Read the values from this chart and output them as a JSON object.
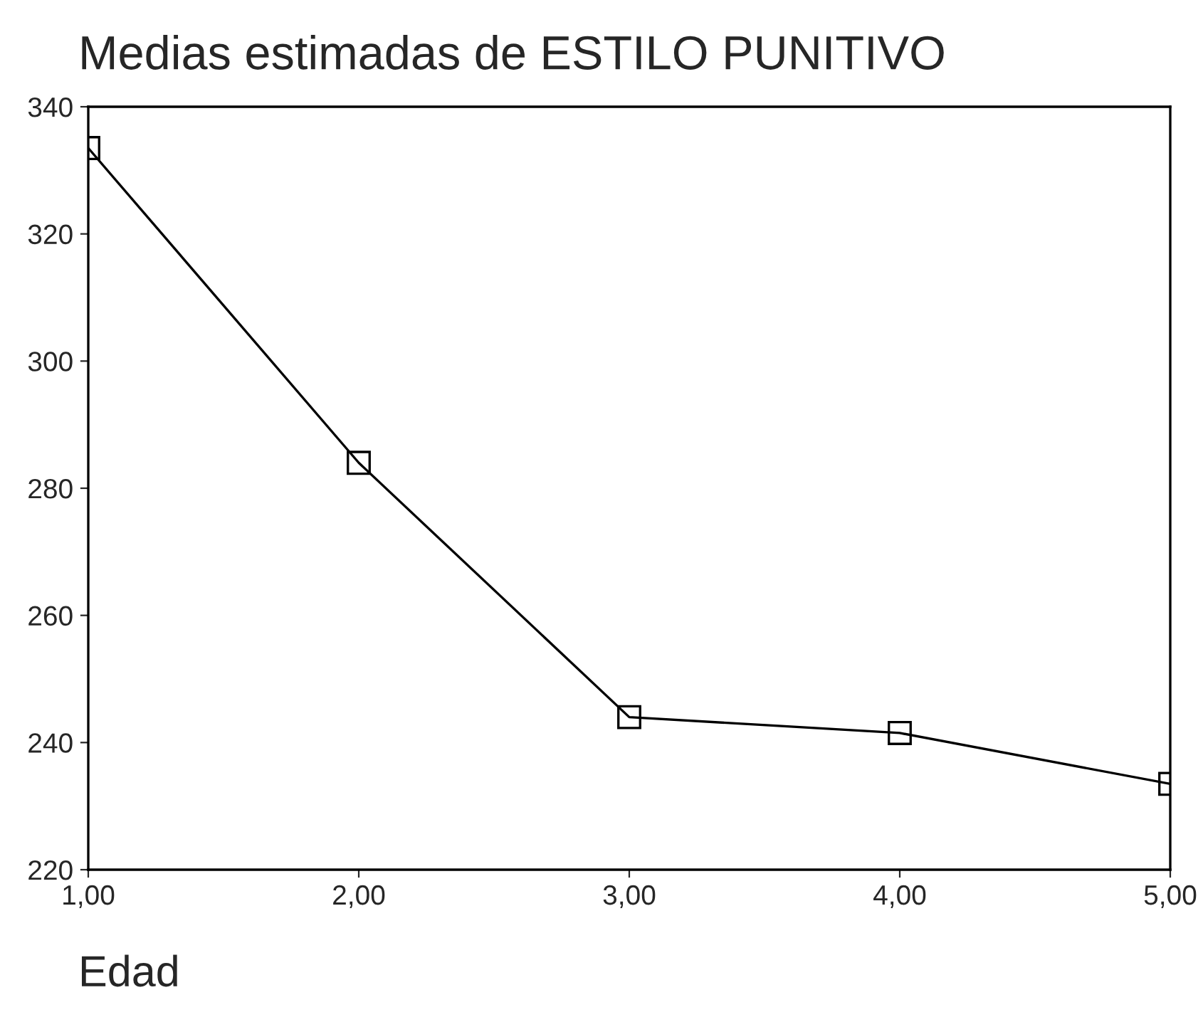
{
  "chart_data": {
    "type": "line",
    "title": "Medias estimadas de ESTILO PUNITIVO",
    "xlabel": "Edad",
    "x": [
      1,
      2,
      3,
      4,
      5
    ],
    "series": [
      {
        "color": "#000000",
        "values": [
          333.5,
          284,
          244,
          241.5,
          233.5
        ]
      }
    ],
    "xlim": [
      1,
      5
    ],
    "xticks": [
      {
        "value": 1,
        "label": "1,00"
      },
      {
        "value": 2,
        "label": "2,00"
      },
      {
        "value": 3,
        "label": "3,00"
      },
      {
        "value": 4,
        "label": "4,00"
      },
      {
        "value": 5,
        "label": "5,00"
      }
    ],
    "ylim": [
      220,
      340
    ],
    "yticks": [
      220,
      240,
      260,
      280,
      300,
      320,
      340
    ],
    "marker": "square",
    "line_style": "solid",
    "grid": false,
    "legend": false
  }
}
